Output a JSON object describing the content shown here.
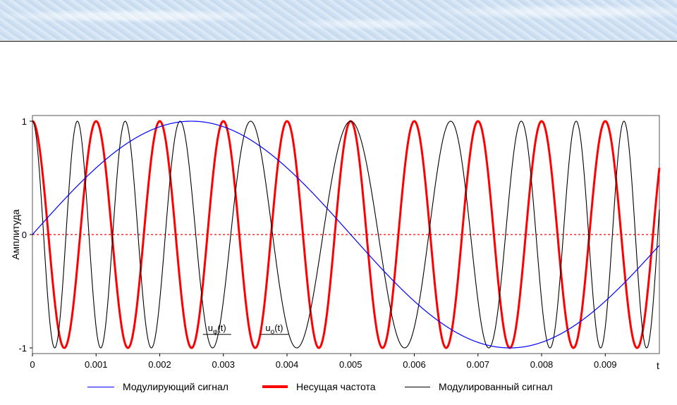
{
  "chart_data": {
    "type": "line",
    "title": "",
    "xlabel": "t",
    "ylabel": "Амплитуда",
    "xlim": [
      0,
      0.00985
    ],
    "ylim": [
      -1.05,
      1.05
    ],
    "x_ticks": [
      "0",
      "0.001",
      "0.002",
      "0.003",
      "0.004",
      "0.005",
      "0.006",
      "0.007",
      "0.008",
      "0.009"
    ],
    "x_tick_values": [
      0,
      0.001,
      0.002,
      0.003,
      0.004,
      0.005,
      0.006,
      0.007,
      0.008,
      0.009
    ],
    "y_ticks": [
      "-1",
      "0",
      "1"
    ],
    "y_tick_values": [
      -1,
      0,
      1
    ],
    "zero_line": {
      "color": "#ff0000",
      "style": "dashed"
    },
    "series": [
      {
        "name": "Модулирующий сигнал",
        "color": "#0000ff",
        "formula": "sin(2*pi*100*t)",
        "frequency_hz": 100,
        "phase_rad": 0
      },
      {
        "name": "Несущая частота",
        "color": "#ff0000",
        "formula": "cos(2*pi*1000*t)",
        "frequency_hz": 1000,
        "phase_rad": 1.5708
      },
      {
        "name": "Модулированный сигнал",
        "color": "#000000",
        "formula": "cos(2*pi*1000*t + 4.3*sin(2*pi*100*t))",
        "frequency_hz": 1000,
        "modulation_index": 4.3
      }
    ],
    "annotations": [
      {
        "text": "uφ(t)",
        "main": "u",
        "sub": "φ",
        "rest": "(t)",
        "x": 0.0029
      },
      {
        "text": "uo(t)",
        "main": "u",
        "sub": "o",
        "rest": "(t)",
        "x": 0.0038
      }
    ],
    "legend_position": "bottom"
  },
  "legend": {
    "items": [
      {
        "label": "Модулирующий сигнал",
        "color": "#0000ff"
      },
      {
        "label": "Несущая частота",
        "color": "#ff0000"
      },
      {
        "label": "Модулированный сигнал",
        "color": "#000000"
      }
    ]
  }
}
